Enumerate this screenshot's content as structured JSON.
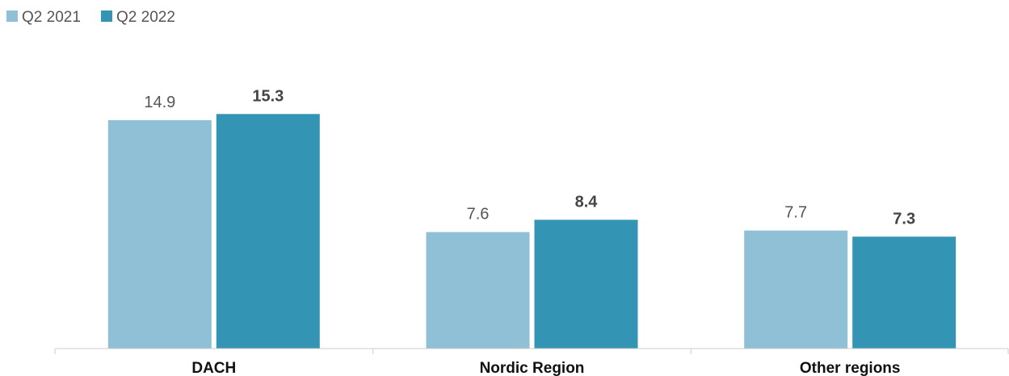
{
  "chart_data": {
    "type": "bar",
    "title": "",
    "xlabel": "",
    "ylabel": "",
    "categories": [
      "DACH",
      "Nordic Region",
      "Other regions"
    ],
    "series": [
      {
        "name": "Q2 2021",
        "values": [
          14.9,
          7.6,
          7.7
        ],
        "color": "#8fc0d6",
        "label_weight": "normal"
      },
      {
        "name": "Q2 2022",
        "values": [
          15.3,
          8.4,
          7.3
        ],
        "color": "#3394b4",
        "label_weight": "bold"
      }
    ],
    "ylim": [
      0,
      18
    ],
    "grid": false,
    "legend_position": "top-left",
    "axis_color": "#cccccc"
  }
}
